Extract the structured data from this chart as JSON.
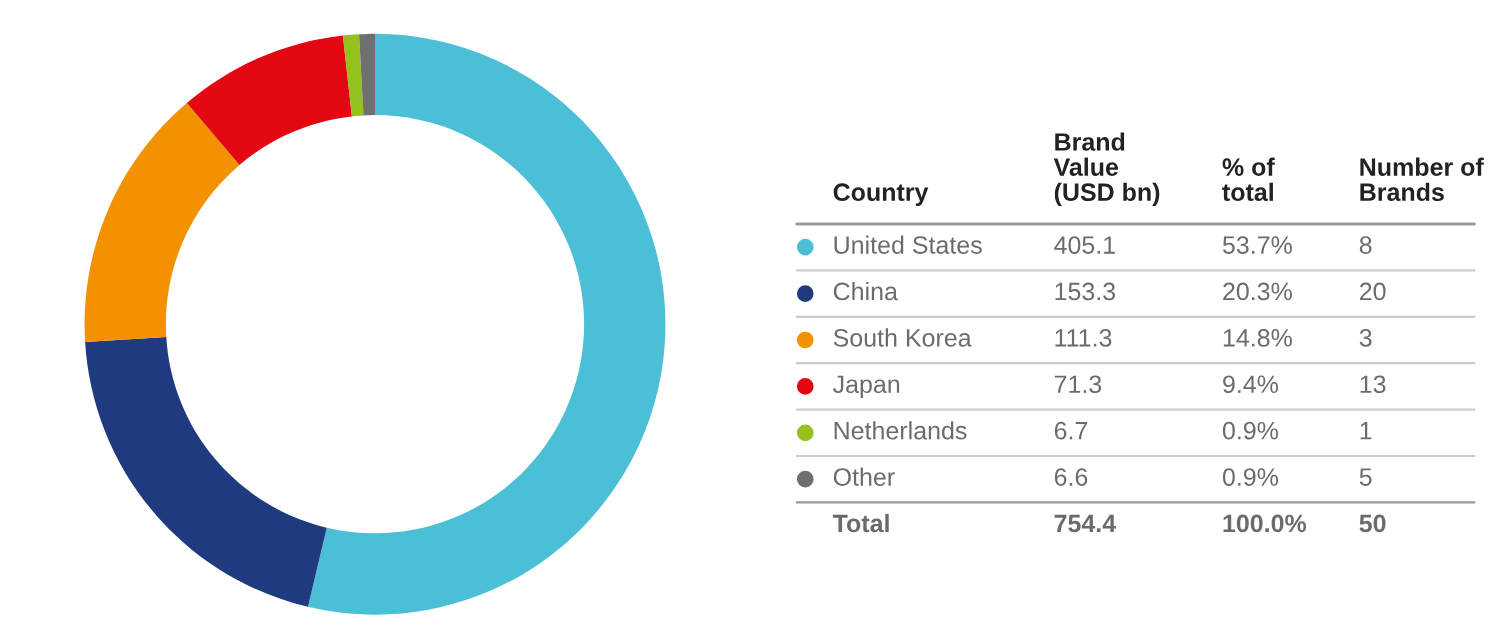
{
  "chart_data": {
    "type": "donut",
    "categories": [
      "United States",
      "China",
      "South Korea",
      "Japan",
      "Netherlands",
      "Other"
    ],
    "values": [
      405.1,
      153.3,
      111.3,
      71.3,
      6.7,
      6.6
    ],
    "colors": [
      "#4bbfd6",
      "#1f3a7e",
      "#f39200",
      "#e30613",
      "#95c11f",
      "#6f6f6f"
    ],
    "data_labels": true,
    "legend": "right",
    "legend_title": "Country",
    "annotations": [
      "Brand\nValue\n(USD bn)",
      "% of\ntotal",
      "Number of\nBrands",
      "53.7%",
      "8",
      "20.3%",
      "20",
      "14.8%",
      "3",
      "9.4%",
      "13",
      "0.9%",
      "1",
      "0.9%",
      "5",
      "Total",
      "754.4",
      "100.0%",
      "50"
    ]
  }
}
